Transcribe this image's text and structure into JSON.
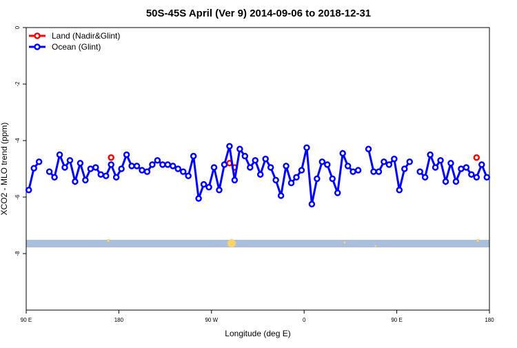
{
  "chart_data": {
    "type": "line",
    "title": "50S-45S April (Ver 9)   2014-09-06 to 2018-12-31",
    "xlabel": "Longitude (deg E)",
    "ylabel": "XCO2 - MLO trend (ppm)",
    "x": [
      92.5,
      97.5,
      102.5,
      107.5,
      112.5,
      117.5,
      122.5,
      127.5,
      132.5,
      137.5,
      142.5,
      147.5,
      152.5,
      157.5,
      162.5,
      167.5,
      172.5,
      177.5,
      182.5,
      187.5,
      192.5,
      197.5,
      202.5,
      207.5,
      212.5,
      217.5,
      222.5,
      227.5,
      232.5,
      237.5,
      242.5,
      247.5,
      252.5,
      257.5,
      262.5,
      267.5,
      272.5,
      277.5,
      282.5,
      287.5,
      292.5,
      297.5,
      302.5,
      307.5,
      312.5,
      317.5,
      322.5,
      327.5,
      332.5,
      337.5,
      342.5,
      347.5,
      352.5,
      357.5,
      362.5,
      367.5,
      372.5,
      377.5,
      382.5,
      387.5,
      392.5,
      397.5,
      402.5,
      407.5,
      412.5,
      417.5,
      422.5,
      427.5,
      432.5,
      437.5,
      442.5,
      447.5,
      452.5,
      457.5,
      462.5,
      467.5,
      472.5,
      477.5,
      482.5,
      487.5,
      492.5,
      497.5,
      502.5,
      507.5,
      512.5,
      517.5,
      522.5,
      527.5,
      532.5,
      537.5
    ],
    "series": [
      {
        "name": "Land (Nadir&Glint)",
        "color": "#ff0000",
        "values": [
          null,
          null,
          null,
          null,
          null,
          null,
          null,
          null,
          null,
          null,
          null,
          null,
          null,
          null,
          null,
          null,
          -4.6,
          null,
          null,
          null,
          null,
          null,
          null,
          null,
          null,
          null,
          null,
          null,
          null,
          null,
          null,
          null,
          null,
          null,
          null,
          null,
          null,
          null,
          null,
          -4.8,
          -4.95,
          null,
          null,
          null,
          null,
          null,
          null,
          null,
          null,
          null,
          null,
          null,
          null,
          null,
          null,
          null,
          null,
          null,
          null,
          null,
          null,
          null,
          null,
          null,
          null,
          null,
          null,
          null,
          null,
          null,
          null,
          null,
          null,
          null,
          null,
          null,
          null,
          null,
          null,
          null,
          null,
          null,
          null,
          null,
          null,
          null,
          null,
          -4.6,
          null,
          null
        ]
      },
      {
        "name": "Ocean (Glint)",
        "color": "#0000ff",
        "values": [
          -5.75,
          -4.98,
          -4.75,
          null,
          -5.1,
          -5.3,
          -4.5,
          -4.95,
          -4.7,
          -5.45,
          -4.8,
          -5.4,
          -5.0,
          -4.95,
          -5.2,
          -5.25,
          -4.85,
          -5.3,
          -5.0,
          -4.5,
          -4.9,
          -4.9,
          -5.05,
          -5.1,
          -4.85,
          -4.7,
          -4.85,
          -4.85,
          -4.9,
          -5.0,
          -5.1,
          -5.25,
          -4.55,
          -6.05,
          -5.55,
          -5.65,
          -4.95,
          -5.75,
          -4.85,
          -4.2,
          -5.4,
          -4.3,
          -4.55,
          -4.95,
          -4.7,
          -5.2,
          -4.65,
          -4.95,
          -5.4,
          -5.95,
          -4.9,
          -5.5,
          -5.3,
          -5.05,
          -4.25,
          -6.25,
          -5.35,
          -4.75,
          -4.85,
          -5.35,
          -5.85,
          -4.45,
          -4.9,
          -5.1,
          -5.05,
          null,
          -4.3,
          -5.1,
          -5.1,
          -4.75,
          -4.85,
          -4.65,
          -5.75,
          -5.0,
          -4.75,
          null,
          -5.1,
          -5.3,
          -4.5,
          -4.95,
          -4.7,
          -5.45,
          -4.8,
          -5.45,
          -5.0,
          -4.95,
          -5.2,
          -5.3,
          -4.85,
          -5.3
        ]
      }
    ],
    "xlim": [
      90,
      540
    ],
    "xticks": [
      {
        "value": 90,
        "label": "90 E"
      },
      {
        "value": 180,
        "label": "180"
      },
      {
        "value": 270,
        "label": "90 W"
      },
      {
        "value": 360,
        "label": "0"
      },
      {
        "value": 450,
        "label": "90 E"
      },
      {
        "value": 540,
        "label": "180"
      }
    ],
    "ylim": [
      -10,
      0
    ],
    "yticks": [
      0,
      -2,
      -4,
      -6,
      -8
    ],
    "legend": "upper left"
  }
}
